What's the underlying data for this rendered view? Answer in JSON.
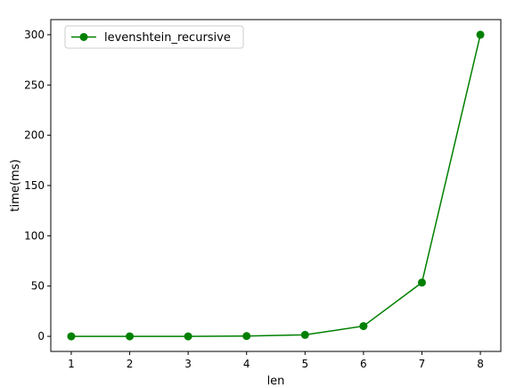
{
  "chart_data": {
    "type": "line",
    "title": "",
    "xlabel": "len",
    "ylabel": "time(ms)",
    "xlim": [
      0.65,
      8.35
    ],
    "ylim": [
      -15,
      315
    ],
    "xticks": [
      1,
      2,
      3,
      4,
      5,
      6,
      7,
      8
    ],
    "yticks": [
      0,
      50,
      100,
      150,
      200,
      250,
      300
    ],
    "grid": false,
    "legend_position": "upper-left",
    "series": [
      {
        "name": "levenshtein_recursive",
        "color": "#008000",
        "marker": "circle",
        "x": [
          1,
          2,
          3,
          4,
          5,
          6,
          7,
          8
        ],
        "y": [
          0,
          0,
          0,
          0.3,
          1.5,
          10.2,
          53.5,
          300
        ]
      }
    ]
  }
}
